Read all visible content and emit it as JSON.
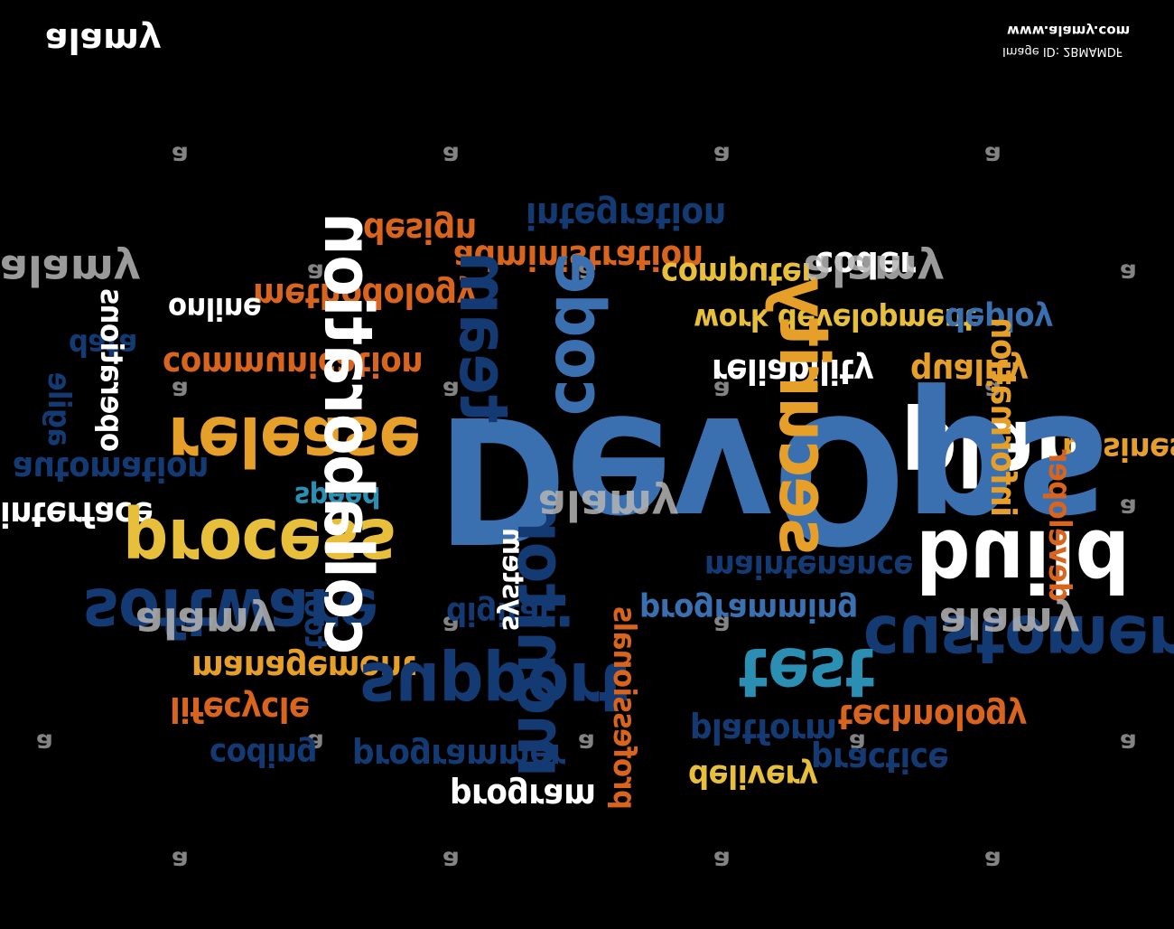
{
  "header": {
    "brand": "alamy",
    "site": "www.alamy.com",
    "image_id": "Image ID: 2BMAMDF"
  },
  "watermark": {
    "small": "a",
    "logo": "alamy"
  },
  "colors": {
    "background": "#000000",
    "blue": "#3a6fb0",
    "navy": "#143a73",
    "orange": "#d9641e",
    "amber": "#e6a02a",
    "yellow": "#e8bf3a",
    "white": "#ffffff",
    "teal": "#2a8fb3"
  },
  "cloud": {
    "devops": "DevOps",
    "collaboration": "collaboration",
    "team": "team",
    "code": "code",
    "security": "security",
    "plan": "plan",
    "build": "build",
    "release": "release",
    "process": "process",
    "software": "software",
    "support": "support",
    "monitor": "monitor",
    "customer": "customer",
    "test": "test",
    "integration": "integration",
    "design": "design",
    "administration": "administration",
    "computer": "computer",
    "coder": "coder",
    "online": "online",
    "methodology": "methodology",
    "work_development": "work development",
    "deploy": "deploy",
    "data": "data",
    "operations": "operations",
    "communication": "communication",
    "reliability": "reliability",
    "quality": "quality",
    "agile": "agile",
    "information": "information",
    "business": "business",
    "automation": "automation",
    "speed": "speed",
    "interface": "interface",
    "developer": "developer",
    "maintenance": "maintenance",
    "system": "system",
    "digital": "digital",
    "tool": "tool",
    "programming": "programming",
    "management": "management",
    "lifecycle": "lifecycle",
    "professionals": "professionals",
    "technology": "technology",
    "coding": "coding",
    "programmer": "programmer",
    "platform": "platform",
    "practice": "practice",
    "delivery": "delivery",
    "program": "program"
  }
}
